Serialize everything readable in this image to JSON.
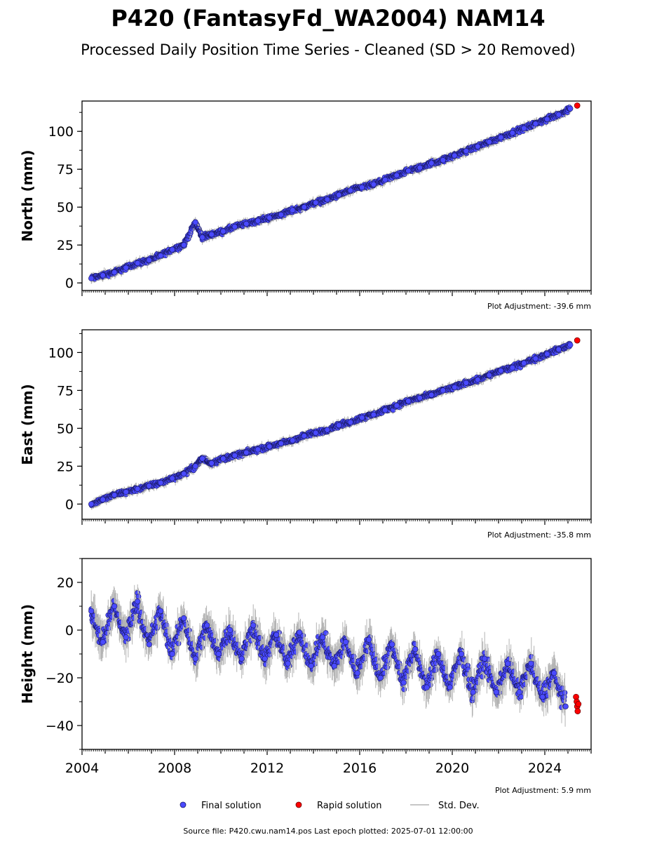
{
  "title": "P420 (FantasyFd_WA2004) NAM14",
  "subtitle": "Processed Daily Position Time Series - Cleaned (SD > 20 Removed)",
  "footer": "Source file: P420.cwu.nam14.pos  Last epoch plotted: 2025-07-01 12:00:00",
  "legend": {
    "final_label": "Final solution",
    "rapid_label": "Rapid solution",
    "std_label": "Std. Dev."
  },
  "colors": {
    "final": "#4a4aff",
    "final_edge": "#1a1a66",
    "rapid": "#ff0000",
    "rapid_edge": "#660000",
    "std": "#b4b4b4"
  },
  "chart_data": [
    {
      "type": "scatter",
      "ylabel": "North (mm)",
      "adjustment": "Plot Adjustment: -39.6 mm",
      "xlim": [
        2004.0,
        2026.0
      ],
      "ylim": [
        -5,
        120
      ],
      "yticks": [
        0,
        25,
        50,
        75,
        100
      ],
      "ytick_labels": [
        "0",
        "25",
        "50",
        "75",
        "100"
      ],
      "series": [
        {
          "name": "Final solution",
          "x": [
            2004.4,
            2004.9,
            2005.4,
            2005.9,
            2006.4,
            2006.9,
            2007.4,
            2007.9,
            2008.4,
            2008.9,
            2009.2,
            2009.6,
            2010.1,
            2010.6,
            2011.1,
            2011.6,
            2012.1,
            2012.6,
            2013.1,
            2013.6,
            2014.1,
            2014.6,
            2015.1,
            2015.6,
            2016.1,
            2016.6,
            2017.1,
            2017.6,
            2018.1,
            2018.6,
            2019.1,
            2019.6,
            2020.1,
            2020.6,
            2021.1,
            2021.6,
            2022.1,
            2022.6,
            2023.1,
            2023.6,
            2024.1,
            2024.6,
            2025.1
          ],
          "y": [
            3,
            5,
            7,
            10,
            13,
            15,
            18,
            22,
            25,
            40,
            30,
            32,
            34,
            37,
            39,
            41,
            43,
            45,
            48,
            50,
            53,
            55,
            58,
            61,
            63,
            65,
            68,
            71,
            74,
            76,
            79,
            81,
            84,
            87,
            90,
            93,
            96,
            99,
            102,
            105,
            108,
            111,
            115
          ]
        },
        {
          "name": "Rapid solution",
          "x": [
            2025.4
          ],
          "y": [
            117
          ]
        }
      ]
    },
    {
      "type": "scatter",
      "ylabel": "East (mm)",
      "adjustment": "Plot Adjustment: -35.8 mm",
      "xlim": [
        2004.0,
        2026.0
      ],
      "ylim": [
        -10,
        115
      ],
      "yticks": [
        0,
        25,
        50,
        75,
        100
      ],
      "ytick_labels": [
        "0",
        "25",
        "50",
        "75",
        "100"
      ],
      "series": [
        {
          "name": "Final solution",
          "x": [
            2004.4,
            2004.9,
            2005.4,
            2005.9,
            2006.4,
            2006.9,
            2007.4,
            2007.9,
            2008.4,
            2008.9,
            2009.2,
            2009.6,
            2010.1,
            2010.6,
            2011.1,
            2011.6,
            2012.1,
            2012.6,
            2013.1,
            2013.6,
            2014.1,
            2014.6,
            2015.1,
            2015.6,
            2016.1,
            2016.6,
            2017.1,
            2017.6,
            2018.1,
            2018.6,
            2019.1,
            2019.6,
            2020.1,
            2020.6,
            2021.1,
            2021.6,
            2022.1,
            2022.6,
            2023.1,
            2023.6,
            2024.1,
            2024.6,
            2025.1
          ],
          "y": [
            0,
            3,
            6,
            8,
            10,
            12,
            14,
            17,
            20,
            25,
            30,
            27,
            30,
            32,
            34,
            36,
            38,
            40,
            42,
            45,
            47,
            49,
            52,
            54,
            57,
            59,
            62,
            65,
            68,
            70,
            72,
            75,
            77,
            80,
            82,
            85,
            88,
            90,
            93,
            96,
            99,
            102,
            105
          ]
        },
        {
          "name": "Rapid solution",
          "x": [
            2025.4
          ],
          "y": [
            108
          ]
        }
      ]
    },
    {
      "type": "scatter",
      "ylabel": "Height (mm)",
      "adjustment": "Plot Adjustment: 5.9 mm",
      "xlim": [
        2004.0,
        2026.0
      ],
      "ylim": [
        -50,
        30
      ],
      "yticks": [
        20,
        0,
        -20,
        -40
      ],
      "ytick_labels": [
        "20",
        "0",
        "−20",
        "−40"
      ],
      "xticks": [
        2004,
        2008,
        2012,
        2016,
        2020,
        2024
      ],
      "xtick_labels": [
        "2004",
        "2008",
        "2012",
        "2016",
        "2020",
        "2024"
      ],
      "series": [
        {
          "name": "Final solution",
          "x": [
            2004.4,
            2004.9,
            2005.4,
            2005.9,
            2006.4,
            2006.9,
            2007.4,
            2007.9,
            2008.4,
            2008.9,
            2009.4,
            2009.9,
            2010.4,
            2010.9,
            2011.4,
            2011.9,
            2012.4,
            2012.9,
            2013.4,
            2013.9,
            2014.4,
            2014.9,
            2015.4,
            2015.9,
            2016.4,
            2016.9,
            2017.4,
            2017.9,
            2018.4,
            2018.9,
            2019.4,
            2019.9,
            2020.4,
            2020.9,
            2021.4,
            2021.9,
            2022.4,
            2022.9,
            2023.4,
            2023.9,
            2024.4,
            2024.9
          ],
          "y": [
            8,
            -5,
            10,
            -3,
            12,
            -6,
            8,
            -10,
            5,
            -12,
            2,
            -10,
            0,
            -12,
            2,
            -12,
            -2,
            -14,
            -1,
            -15,
            -3,
            -15,
            -5,
            -18,
            -4,
            -20,
            -6,
            -22,
            -8,
            -24,
            -10,
            -24,
            -10,
            -26,
            -12,
            -26,
            -14,
            -26,
            -14,
            -28,
            -18,
            -32
          ]
        },
        {
          "name": "Rapid solution",
          "x": [
            2025.35,
            2025.38,
            2025.4,
            2025.42,
            2025.45
          ],
          "y": [
            -28,
            -30,
            -32,
            -34,
            -31
          ]
        }
      ]
    }
  ]
}
